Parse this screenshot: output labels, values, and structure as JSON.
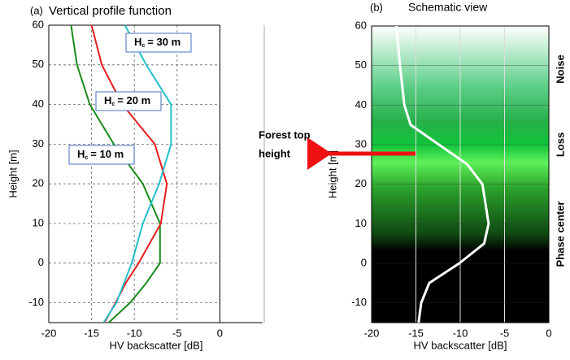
{
  "chart_data": [
    {
      "type": "line",
      "label": "(a)",
      "title": "Vertical profile function",
      "x_label": "HV backscatter [dB]",
      "y_label": "Height [m]",
      "heights": [
        60,
        50,
        40,
        30,
        20,
        10,
        0,
        -5,
        -10,
        -15
      ],
      "series": [
        {
          "color": "#1a8a1a",
          "values": [
            -17.4,
            -16.7,
            -15.2,
            -12.4,
            -9.0,
            -7.0,
            -7.0,
            -8.6,
            -10.5,
            -13.0
          ]
        },
        {
          "color": "#e81c1c",
          "values": [
            -15.0,
            -13.8,
            -11.4,
            -7.6,
            -6.2,
            -6.9,
            -9.5,
            -11.0,
            -12.2,
            -13.5
          ]
        },
        {
          "color": "#22c0c8",
          "values": [
            -11.1,
            -8.6,
            -5.7,
            -5.7,
            -7.1,
            -9.0,
            -10.3,
            -11.2,
            -12.1,
            -13.6
          ]
        }
      ],
      "annotations": [
        {
          "base": "H",
          "sub": "c",
          "text": "= 10 m"
        },
        {
          "base": "H",
          "sub": "c",
          "text": "= 20 m"
        },
        {
          "base": "H",
          "sub": "c",
          "text": "= 30 m"
        }
      ],
      "xlim": [
        -20,
        5
      ],
      "xticks": [
        -20,
        -15,
        -10,
        -5,
        0
      ],
      "ylim": [
        -15,
        60
      ],
      "yticks": [
        -10,
        0,
        10,
        20,
        30,
        40,
        50,
        60
      ],
      "grid": true
    },
    {
      "type": "line",
      "label": "(b)",
      "title": "Schematic view",
      "x_label": "HV backscatter [dB]",
      "y_label": "Height [m]",
      "heights": [
        60,
        50,
        40,
        35,
        30,
        25,
        20,
        10,
        5,
        0,
        -5,
        -10,
        -15
      ],
      "series": [
        {
          "color": "#ffffff",
          "values": [
            -17.2,
            -16.8,
            -16.3,
            -15.6,
            -12.4,
            -9.2,
            -7.5,
            -6.8,
            -7.3,
            -10.1,
            -13.5,
            -14.4,
            -14.7
          ]
        }
      ],
      "zones": [
        "Noise",
        "Loss",
        "Phase center"
      ],
      "annotation": {
        "lines": [
          "Forest top",
          "height"
        ],
        "color": "#ee1111"
      },
      "xlim": [
        -20,
        0
      ],
      "xticks": [
        -20,
        -15,
        -10,
        -5,
        0
      ],
      "ylim": [
        -15,
        60
      ],
      "yticks": [
        -10,
        0,
        10,
        20,
        30,
        40,
        50,
        60
      ],
      "grid": true
    }
  ]
}
